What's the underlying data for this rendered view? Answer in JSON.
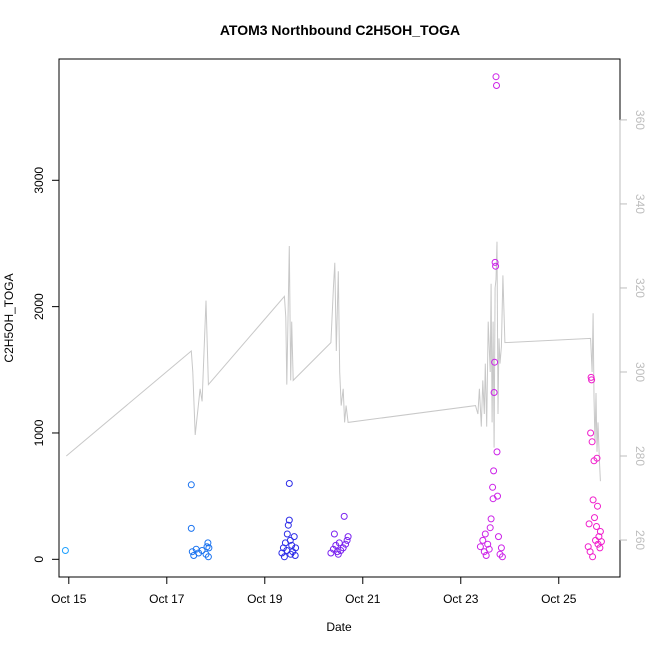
{
  "chart_data": {
    "type": "scatter",
    "title": "ATOM3 Northbound C2H5OH_TOGA",
    "xlabel": "Date",
    "ylabel": "C2H5OH_TOGA",
    "xlim": [
      14.8,
      26.25
    ],
    "ylim": [
      -140,
      3960
    ],
    "y2lim": [
      251.2,
      374.5
    ],
    "x_ticks": [
      {
        "value": 15,
        "label": "Oct 15"
      },
      {
        "value": 17,
        "label": "Oct 17"
      },
      {
        "value": 19,
        "label": "Oct 19"
      },
      {
        "value": 21,
        "label": "Oct 21"
      },
      {
        "value": 23,
        "label": "Oct 23"
      },
      {
        "value": 25,
        "label": "Oct 25"
      }
    ],
    "y_ticks": [
      {
        "value": 0,
        "label": "0"
      },
      {
        "value": 1000,
        "label": "1000"
      },
      {
        "value": 2000,
        "label": "2000"
      },
      {
        "value": 3000,
        "label": "3000"
      }
    ],
    "y2_ticks": [
      {
        "value": 260,
        "label": "260"
      },
      {
        "value": 280,
        "label": "280"
      },
      {
        "value": 300,
        "label": "300"
      },
      {
        "value": 320,
        "label": "320"
      },
      {
        "value": 340,
        "label": "340"
      },
      {
        "value": 360,
        "label": "360"
      }
    ],
    "colors": {
      "line": "#c8c8c8",
      "axis": "#000000",
      "right_axis": "#bdbdbd"
    },
    "series": [
      {
        "name": "C2H5OH_TOGA",
        "kind": "scatter",
        "axis": "left",
        "points": [
          [
            14.93,
            70,
            "#1ea0ff"
          ],
          [
            17.5,
            590,
            "#1a73f0"
          ],
          [
            17.5,
            245,
            "#1a73f0"
          ],
          [
            17.52,
            60,
            "#1a73f0"
          ],
          [
            17.55,
            30,
            "#1a73f0"
          ],
          [
            17.6,
            80,
            "#1a73f0"
          ],
          [
            17.65,
            50,
            "#1a73f0"
          ],
          [
            17.72,
            70,
            "#1a73f0"
          ],
          [
            17.8,
            40,
            "#1a73f0"
          ],
          [
            17.82,
            100,
            "#1a73f0"
          ],
          [
            17.84,
            130,
            "#1a73f0"
          ],
          [
            17.85,
            20,
            "#1a73f0"
          ],
          [
            17.86,
            90,
            "#1a73f0"
          ],
          [
            19.35,
            50,
            "#2b2be8"
          ],
          [
            19.38,
            90,
            "#2b2be8"
          ],
          [
            19.4,
            20,
            "#2b2be8"
          ],
          [
            19.42,
            130,
            "#2b2be8"
          ],
          [
            19.45,
            70,
            "#2b2be8"
          ],
          [
            19.46,
            200,
            "#2b2be8"
          ],
          [
            19.48,
            270,
            "#2b2be8"
          ],
          [
            19.5,
            600,
            "#2b2be8"
          ],
          [
            19.5,
            310,
            "#2b2be8"
          ],
          [
            19.52,
            150,
            "#2b2be8"
          ],
          [
            19.53,
            40,
            "#2b2be8"
          ],
          [
            19.55,
            110,
            "#2b2be8"
          ],
          [
            19.57,
            60,
            "#2b2be8"
          ],
          [
            19.6,
            180,
            "#2b2be8"
          ],
          [
            19.62,
            30,
            "#2b2be8"
          ],
          [
            19.63,
            90,
            "#2b2be8"
          ],
          [
            20.35,
            50,
            "#7a22f0"
          ],
          [
            20.4,
            80,
            "#7a22f0"
          ],
          [
            20.42,
            200,
            "#7a22f0"
          ],
          [
            20.45,
            110,
            "#7a22f0"
          ],
          [
            20.48,
            60,
            "#7a22f0"
          ],
          [
            20.5,
            40,
            "#7a22f0"
          ],
          [
            20.52,
            130,
            "#7a22f0"
          ],
          [
            20.55,
            70,
            "#7a22f0"
          ],
          [
            20.6,
            90,
            "#7a22f0"
          ],
          [
            20.62,
            340,
            "#7a22f0"
          ],
          [
            20.65,
            120,
            "#7a22f0"
          ],
          [
            20.68,
            150,
            "#7a22f0"
          ],
          [
            20.7,
            180,
            "#7a22f0"
          ],
          [
            23.4,
            100,
            "#cc22e8"
          ],
          [
            23.45,
            150,
            "#cc22e8"
          ],
          [
            23.48,
            60,
            "#cc22e8"
          ],
          [
            23.5,
            200,
            "#cc22e8"
          ],
          [
            23.52,
            30,
            "#cc22e8"
          ],
          [
            23.55,
            120,
            "#cc22e8"
          ],
          [
            23.58,
            80,
            "#cc22e8"
          ],
          [
            23.6,
            250,
            "#cc22e8"
          ],
          [
            23.62,
            320,
            "#cc22e8"
          ],
          [
            23.65,
            570,
            "#cc22e8"
          ],
          [
            23.66,
            480,
            "#cc22e8"
          ],
          [
            23.67,
            700,
            "#cc22e8"
          ],
          [
            23.68,
            1320,
            "#cc22e8"
          ],
          [
            23.69,
            1560,
            "#cc22e8"
          ],
          [
            23.7,
            2350,
            "#cc22e8"
          ],
          [
            23.71,
            2320,
            "#cc22e8"
          ],
          [
            23.72,
            3820,
            "#cc22e8"
          ],
          [
            23.73,
            3750,
            "#cc22e8"
          ],
          [
            23.74,
            850,
            "#cc22e8"
          ],
          [
            23.75,
            500,
            "#cc22e8"
          ],
          [
            23.77,
            180,
            "#cc22e8"
          ],
          [
            23.8,
            40,
            "#cc22e8"
          ],
          [
            23.83,
            90,
            "#cc22e8"
          ],
          [
            23.85,
            20,
            "#cc22e8"
          ],
          [
            25.6,
            100,
            "#f01ecc"
          ],
          [
            25.62,
            280,
            "#f01ecc"
          ],
          [
            25.64,
            60,
            "#f01ecc"
          ],
          [
            25.65,
            1000,
            "#f01ecc"
          ],
          [
            25.66,
            1440,
            "#f01ecc"
          ],
          [
            25.67,
            1420,
            "#f01ecc"
          ],
          [
            25.68,
            930,
            "#f01ecc"
          ],
          [
            25.69,
            20,
            "#f01ecc"
          ],
          [
            25.7,
            470,
            "#f01ecc"
          ],
          [
            25.72,
            780,
            "#f01ecc"
          ],
          [
            25.73,
            330,
            "#f01ecc"
          ],
          [
            25.75,
            150,
            "#f01ecc"
          ],
          [
            25.77,
            260,
            "#f01ecc"
          ],
          [
            25.78,
            800,
            "#f01ecc"
          ],
          [
            25.79,
            420,
            "#f01ecc"
          ],
          [
            25.8,
            120,
            "#f01ecc"
          ],
          [
            25.82,
            180,
            "#f01ecc"
          ],
          [
            25.84,
            90,
            "#f01ecc"
          ],
          [
            25.85,
            220,
            "#f01ecc"
          ],
          [
            25.87,
            140,
            "#f01ecc"
          ]
        ]
      },
      {
        "name": "secondary",
        "kind": "line",
        "axis": "right",
        "points": [
          [
            14.95,
            280
          ],
          [
            17.5,
            305
          ],
          [
            17.53,
            300
          ],
          [
            17.58,
            285
          ],
          [
            17.68,
            296
          ],
          [
            17.72,
            293
          ],
          [
            17.8,
            317
          ],
          [
            17.85,
            297
          ],
          [
            19.4,
            318
          ],
          [
            19.43,
            313
          ],
          [
            19.45,
            297
          ],
          [
            19.47,
            310
          ],
          [
            19.5,
            330
          ],
          [
            19.53,
            298
          ],
          [
            19.55,
            312
          ],
          [
            19.58,
            298
          ],
          [
            20.35,
            307
          ],
          [
            20.4,
            320
          ],
          [
            20.43,
            326
          ],
          [
            20.46,
            305
          ],
          [
            20.5,
            324
          ],
          [
            20.53,
            300
          ],
          [
            20.56,
            292
          ],
          [
            20.6,
            296
          ],
          [
            20.63,
            288
          ],
          [
            20.66,
            292
          ],
          [
            20.7,
            288
          ],
          [
            23.3,
            292
          ],
          [
            23.35,
            290
          ],
          [
            23.38,
            296
          ],
          [
            23.42,
            287
          ],
          [
            23.45,
            298
          ],
          [
            23.48,
            290
          ],
          [
            23.5,
            302
          ],
          [
            23.53,
            287
          ],
          [
            23.56,
            312
          ],
          [
            23.6,
            300
          ],
          [
            23.62,
            321
          ],
          [
            23.64,
            288
          ],
          [
            23.66,
            312
          ],
          [
            23.68,
            282
          ],
          [
            23.7,
            320
          ],
          [
            23.72,
            322
          ],
          [
            23.74,
            331
          ],
          [
            23.76,
            290
          ],
          [
            23.78,
            308
          ],
          [
            23.8,
            302
          ],
          [
            23.83,
            306
          ],
          [
            23.86,
            323
          ],
          [
            23.9,
            307
          ],
          [
            25.65,
            308
          ],
          [
            25.68,
            300
          ],
          [
            25.7,
            314
          ],
          [
            25.72,
            294
          ],
          [
            25.74,
            283
          ],
          [
            25.76,
            295
          ],
          [
            25.78,
            281
          ],
          [
            25.8,
            288
          ],
          [
            25.83,
            279
          ],
          [
            25.85,
            274
          ]
        ]
      }
    ]
  }
}
